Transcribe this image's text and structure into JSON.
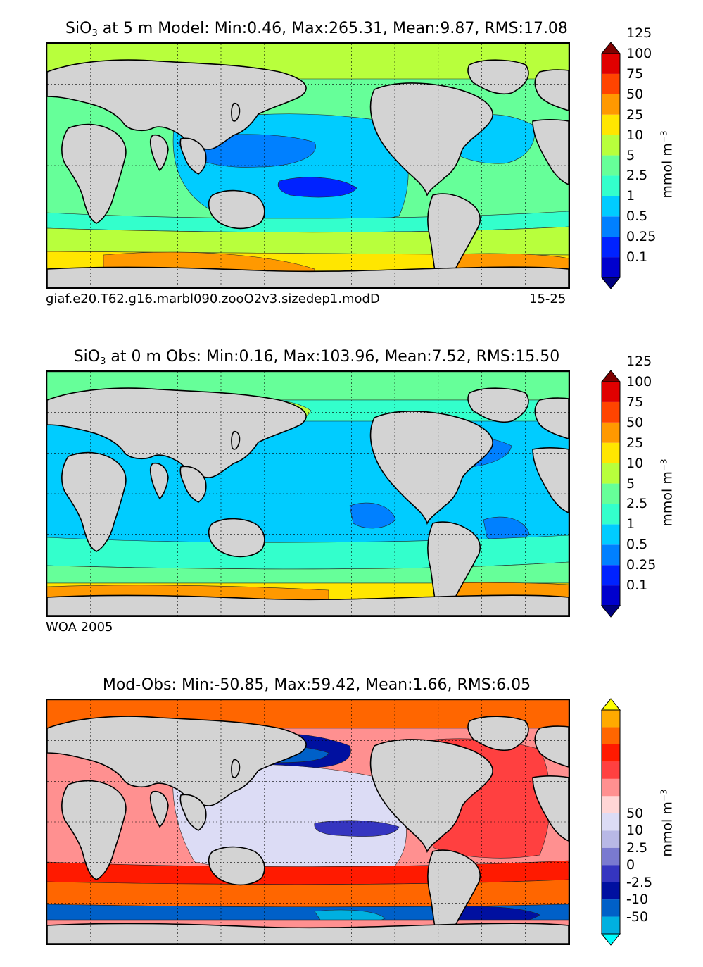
{
  "panels": [
    {
      "title_prefix": "SiO",
      "title_sub": "3",
      "title_suffix": " at 5 m Model: Min:0.46, Max:265.31, Mean:9.87, RMS:17.08",
      "caption_left": "giaf.e20.T62.g16.marbl090.zooO2v3.sizedep1.modD",
      "caption_right": "15-25"
    },
    {
      "title_prefix": "SiO",
      "title_sub": "3",
      "title_suffix": " at 0 m Obs: Min:0.16, Max:103.96, Mean:7.52, RMS:15.50",
      "caption_left": "WOA 2005",
      "caption_right": ""
    },
    {
      "title_prefix": "Mod-Obs: Min:-50.85, Max:59.42, Mean:1.66, RMS:6.05",
      "title_sub": "",
      "title_suffix": "",
      "caption_left": "",
      "caption_right": ""
    }
  ],
  "colorbars": {
    "concentration": {
      "ticks": [
        "0.1",
        "0.25",
        "0.5",
        "1",
        "2.5",
        "5",
        "10",
        "25",
        "50",
        "75",
        "100",
        "125"
      ],
      "colors": [
        "#00007f",
        "#0000cd",
        "#0022ff",
        "#0080ff",
        "#00ccff",
        "#33ffcc",
        "#66ff99",
        "#b8ff3c",
        "#ffe600",
        "#ff9900",
        "#ff4400",
        "#e00000",
        "#7f0000"
      ],
      "unit_base": "mmol m",
      "unit_exp": "−3"
    },
    "difference": {
      "ticks": [
        "-50",
        "-10",
        "-2.5",
        "0",
        "2.5",
        "10",
        "50"
      ],
      "colors": [
        "#00ffff",
        "#00b0e0",
        "#0060c8",
        "#0010a0",
        "#3535c0",
        "#7a7ad0",
        "#b8b8e6",
        "#dcdcf5",
        "#ffd6d6",
        "#ff9090",
        "#ff4040",
        "#ff1a00",
        "#ff6600",
        "#ffaa00",
        "#ffff00"
      ],
      "unit_base": "mmol m",
      "unit_exp": "−3"
    }
  },
  "chart_data": [
    {
      "type": "heatmap",
      "title": "SiO3 at 5 m Model",
      "stats": {
        "min": 0.46,
        "max": 265.31,
        "mean": 9.87,
        "rms": 17.08
      },
      "depth_m": 5,
      "colorbar_levels": [
        0.1,
        0.25,
        0.5,
        1,
        2.5,
        5,
        10,
        25,
        50,
        75,
        100,
        125
      ],
      "units": "mmol m^-3"
    },
    {
      "type": "heatmap",
      "title": "SiO3 at 0 m Obs",
      "stats": {
        "min": 0.16,
        "max": 103.96,
        "mean": 7.52,
        "rms": 15.5
      },
      "depth_m": 0,
      "colorbar_levels": [
        0.1,
        0.25,
        0.5,
        1,
        2.5,
        5,
        10,
        25,
        50,
        75,
        100,
        125
      ],
      "units": "mmol m^-3"
    },
    {
      "type": "heatmap",
      "title": "Mod-Obs",
      "stats": {
        "min": -50.85,
        "max": 59.42,
        "mean": 1.66,
        "rms": 6.05
      },
      "colorbar_levels": [
        -50,
        -10,
        -2.5,
        0,
        2.5,
        10,
        50
      ],
      "units": "mmol m^-3"
    }
  ]
}
